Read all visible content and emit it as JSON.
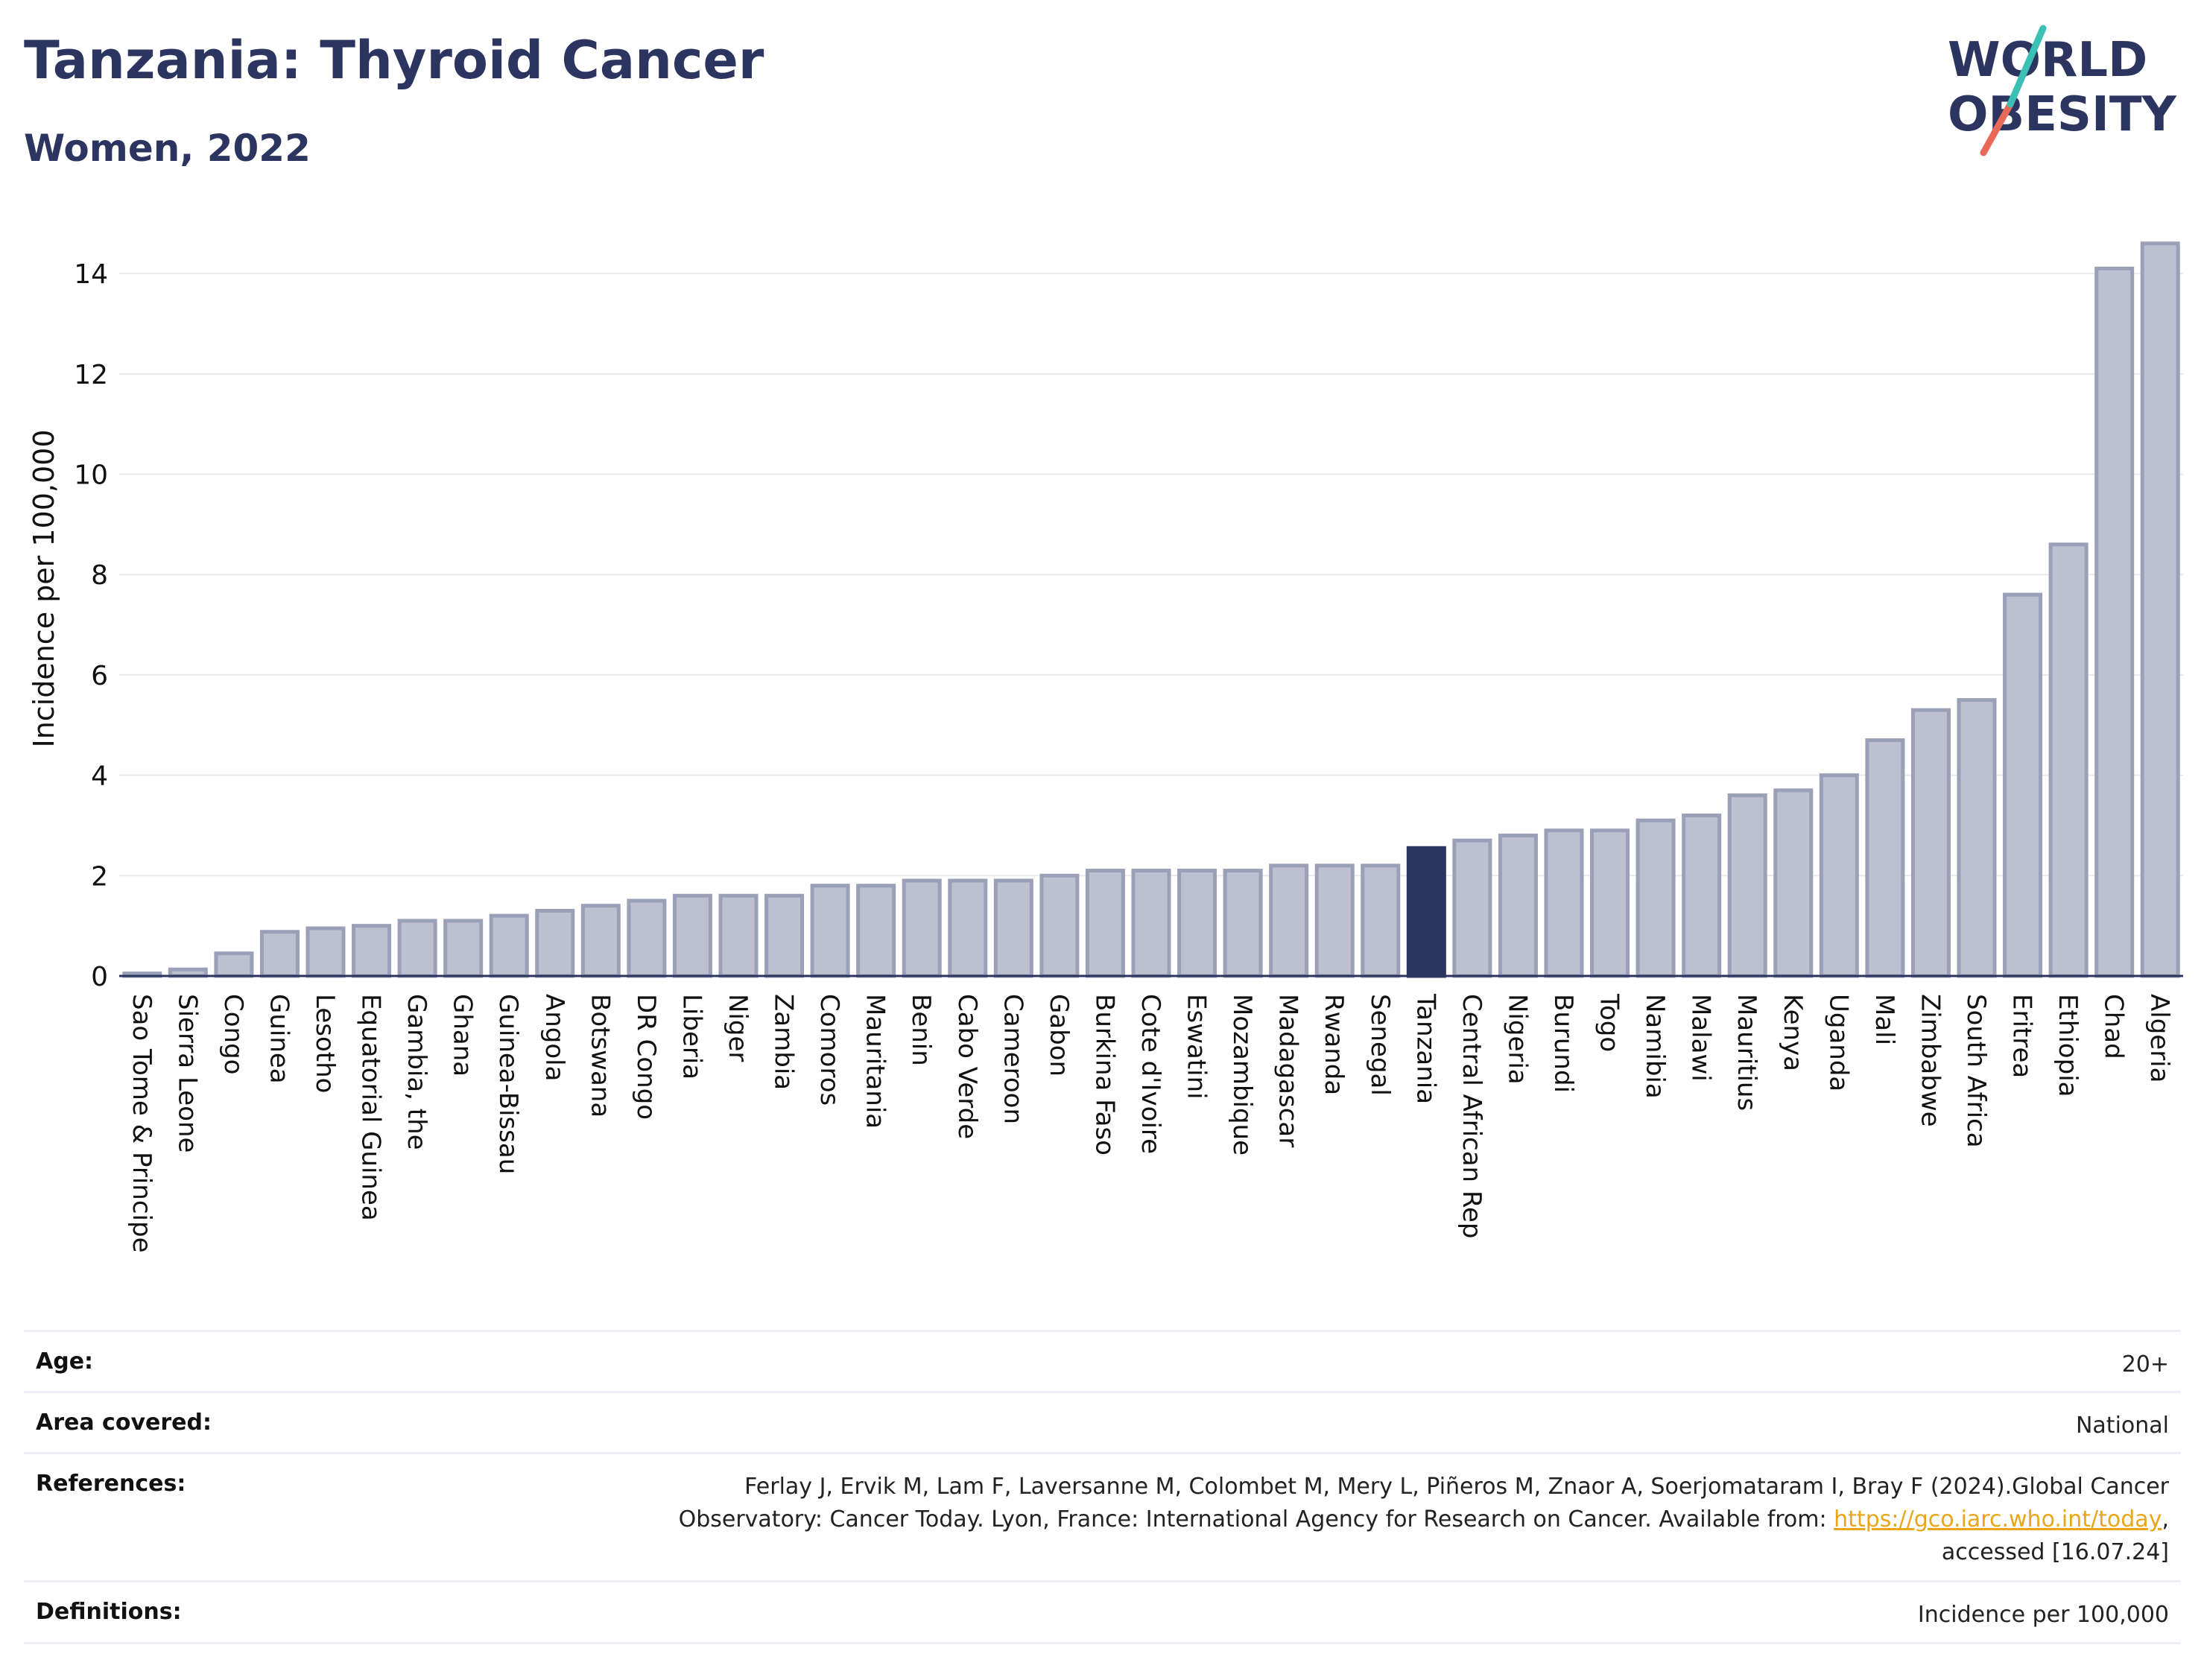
{
  "header": {
    "title": "Tanzania: Thyroid Cancer",
    "subtitle": "Women, 2022"
  },
  "logo": {
    "line1": "WORLD",
    "line2": "OBESITY",
    "text_color": "#2b3560",
    "slash_colors": [
      "#3cbfb4",
      "#e8685a"
    ]
  },
  "chart_data": {
    "type": "bar",
    "ylabel": "Incidence per 100,000",
    "ylim": [
      0,
      14.7
    ],
    "yticks": [
      0,
      2,
      4,
      6,
      8,
      10,
      12,
      14
    ],
    "grid": true,
    "highlight": "Tanzania",
    "colors": {
      "bar": "#bcc0cf",
      "bar_border": "#9aa0b8",
      "highlight": "#2b3560"
    },
    "categories": [
      "Sao Tome & Principe",
      "Sierra Leone",
      "Congo",
      "Guinea",
      "Lesotho",
      "Equatorial Guinea",
      "Gambia, the",
      "Ghana",
      "Guinea-Bissau",
      "Angola",
      "Botswana",
      "DR Congo",
      "Liberia",
      "Niger",
      "Zambia",
      "Comoros",
      "Mauritania",
      "Benin",
      "Cabo Verde",
      "Cameroon",
      "Gabon",
      "Burkina Faso",
      "Cote d'Ivoire",
      "Eswatini",
      "Mozambique",
      "Madagascar",
      "Rwanda",
      "Senegal",
      "Tanzania",
      "Central African Rep",
      "Nigeria",
      "Burundi",
      "Togo",
      "Namibia",
      "Malawi",
      "Mauritius",
      "Kenya",
      "Uganda",
      "Mali",
      "Zimbabwe",
      "South Africa",
      "Eritrea",
      "Ethiopia",
      "Chad",
      "Algeria"
    ],
    "values": [
      0.05,
      0.13,
      0.45,
      0.88,
      0.95,
      1.0,
      1.1,
      1.1,
      1.2,
      1.3,
      1.4,
      1.5,
      1.6,
      1.6,
      1.6,
      1.8,
      1.8,
      1.9,
      1.9,
      1.9,
      2.0,
      2.1,
      2.1,
      2.1,
      2.1,
      2.2,
      2.2,
      2.2,
      2.55,
      2.7,
      2.8,
      2.9,
      2.9,
      3.1,
      3.2,
      3.6,
      3.7,
      4.0,
      4.7,
      5.3,
      5.5,
      7.6,
      8.6,
      14.1,
      14.6
    ]
  },
  "meta": {
    "age": {
      "label": "Age:",
      "value": "20+"
    },
    "area": {
      "label": "Area covered:",
      "value": "National"
    },
    "references": {
      "label": "References:",
      "line1": "Ferlay J, Ervik M, Lam F, Laversanne M, Colombet M, Mery L, Piñeros M, Znaor A, Soerjomataram I, Bray F (2024).Global Cancer",
      "line2_pre": "Observatory: Cancer Today. Lyon, France: International Agency for Research on Cancer. Available from: ",
      "link": "https://gco.iarc.who.int/today",
      "line2_post": ",",
      "line3": "accessed [16.07.24]"
    },
    "definitions": {
      "label": "Definitions:",
      "value": "Incidence per 100,000"
    }
  }
}
